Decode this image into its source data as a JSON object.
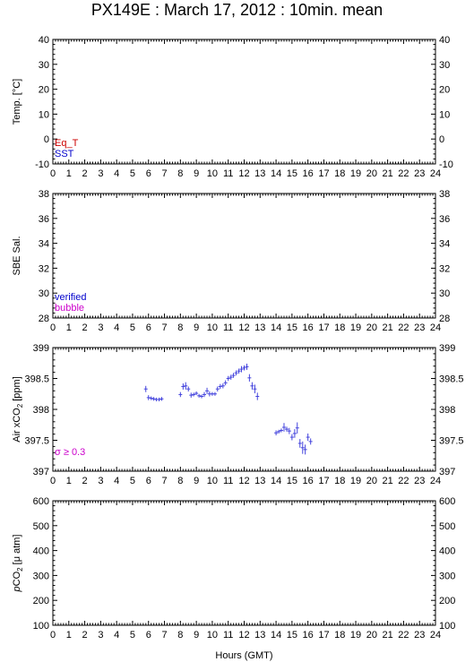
{
  "title": "PX149E : March 17, 2012 : 10min. mean",
  "colors": {
    "eq_t": "#cc0000",
    "sst": "#0000cc",
    "verified": "#0000cc",
    "bubble": "#cc00cc",
    "sigma": "#cc00cc",
    "data": "#4444dd"
  },
  "chart_data": [
    {
      "type": "scatter",
      "ylabel": "Temp. [°C]",
      "ylim": [
        -10,
        40
      ],
      "yticks": [
        "40",
        "30",
        "20",
        "10",
        "0",
        "-10"
      ],
      "xlim": [
        0,
        24
      ],
      "xticks": [
        "0",
        "1",
        "2",
        "3",
        "4",
        "5",
        "6",
        "7",
        "8",
        "9",
        "10",
        "11",
        "12",
        "13",
        "14",
        "15",
        "16",
        "17",
        "18",
        "19",
        "20",
        "21",
        "22",
        "23",
        "24"
      ],
      "legend": [
        "Eq_T",
        "SST"
      ],
      "legend_position": "bottom-left",
      "series": []
    },
    {
      "type": "scatter",
      "ylabel": "SBE Sal.",
      "ylim": [
        28,
        38
      ],
      "yticks": [
        "38",
        "36",
        "34",
        "32",
        "30",
        "28"
      ],
      "xlim": [
        0,
        24
      ],
      "xticks": [
        "0",
        "1",
        "2",
        "3",
        "4",
        "5",
        "6",
        "7",
        "8",
        "9",
        "10",
        "11",
        "12",
        "13",
        "14",
        "15",
        "16",
        "17",
        "18",
        "19",
        "20",
        "21",
        "22",
        "23",
        "24"
      ],
      "legend": [
        "verified",
        "bubble"
      ],
      "legend_position": "bottom-left",
      "series": []
    },
    {
      "type": "scatter",
      "ylabel": "Air xCO2 [ppm]",
      "ylim": [
        397,
        399
      ],
      "yticks": [
        "399",
        "398.5",
        "398",
        "397.5",
        "397"
      ],
      "xlim": [
        0,
        24
      ],
      "xticks": [
        "0",
        "1",
        "2",
        "3",
        "4",
        "5",
        "6",
        "7",
        "8",
        "9",
        "10",
        "11",
        "12",
        "13",
        "14",
        "15",
        "16",
        "17",
        "18",
        "19",
        "20",
        "21",
        "22",
        "23",
        "24"
      ],
      "annotation": "σ ≥ 0.3",
      "annotation_position": "bottom-left",
      "series": [
        {
          "x": [
            5.83,
            6.0,
            6.17,
            6.33,
            6.5,
            6.67,
            6.83,
            8.0,
            8.17,
            8.33,
            8.5,
            8.67,
            8.83,
            9.0,
            9.17,
            9.33,
            9.5,
            9.67,
            9.83,
            10.0,
            10.17,
            10.33,
            10.5,
            10.67,
            10.83,
            11.0,
            11.17,
            11.33,
            11.5,
            11.67,
            11.83,
            12.0,
            12.17,
            12.33,
            12.5,
            12.67,
            12.83,
            14.0,
            14.17,
            14.33,
            14.5,
            14.67,
            14.83,
            15.0,
            15.17,
            15.33,
            15.5,
            15.67,
            15.83,
            16.0,
            16.17
          ],
          "y": [
            398.33,
            398.19,
            398.18,
            398.17,
            398.16,
            398.16,
            398.17,
            398.24,
            398.37,
            398.38,
            398.33,
            398.23,
            398.24,
            398.26,
            398.22,
            398.21,
            398.24,
            398.3,
            398.25,
            398.25,
            398.25,
            398.33,
            398.37,
            398.38,
            398.43,
            398.5,
            398.52,
            398.55,
            398.59,
            398.62,
            398.65,
            398.67,
            398.69,
            398.51,
            398.38,
            398.33,
            398.21,
            397.62,
            397.64,
            397.66,
            397.71,
            397.68,
            397.65,
            397.55,
            397.61,
            397.7,
            397.45,
            397.38,
            397.35,
            397.55,
            397.48
          ],
          "err": [
            0.05,
            0.04,
            0.03,
            0.03,
            0.03,
            0.03,
            0.03,
            0.04,
            0.05,
            0.06,
            0.04,
            0.04,
            0.03,
            0.03,
            0.03,
            0.03,
            0.04,
            0.05,
            0.04,
            0.03,
            0.03,
            0.04,
            0.04,
            0.04,
            0.04,
            0.04,
            0.04,
            0.04,
            0.04,
            0.04,
            0.05,
            0.04,
            0.05,
            0.06,
            0.06,
            0.07,
            0.06,
            0.04,
            0.03,
            0.03,
            0.07,
            0.04,
            0.05,
            0.05,
            0.07,
            0.09,
            0.07,
            0.1,
            0.08,
            0.06,
            0.05
          ]
        }
      ]
    },
    {
      "type": "scatter",
      "ylabel": "pCO2 [μ atm]",
      "ylim": [
        100,
        600
      ],
      "yticks": [
        "600",
        "500",
        "400",
        "300",
        "200",
        "100"
      ],
      "xlim": [
        0,
        24
      ],
      "xticks": [
        "0",
        "1",
        "2",
        "3",
        "4",
        "5",
        "6",
        "7",
        "8",
        "9",
        "10",
        "11",
        "12",
        "13",
        "14",
        "15",
        "16",
        "17",
        "18",
        "19",
        "20",
        "21",
        "22",
        "23",
        "24"
      ],
      "xlabel": "Hours (GMT)",
      "series": []
    }
  ]
}
